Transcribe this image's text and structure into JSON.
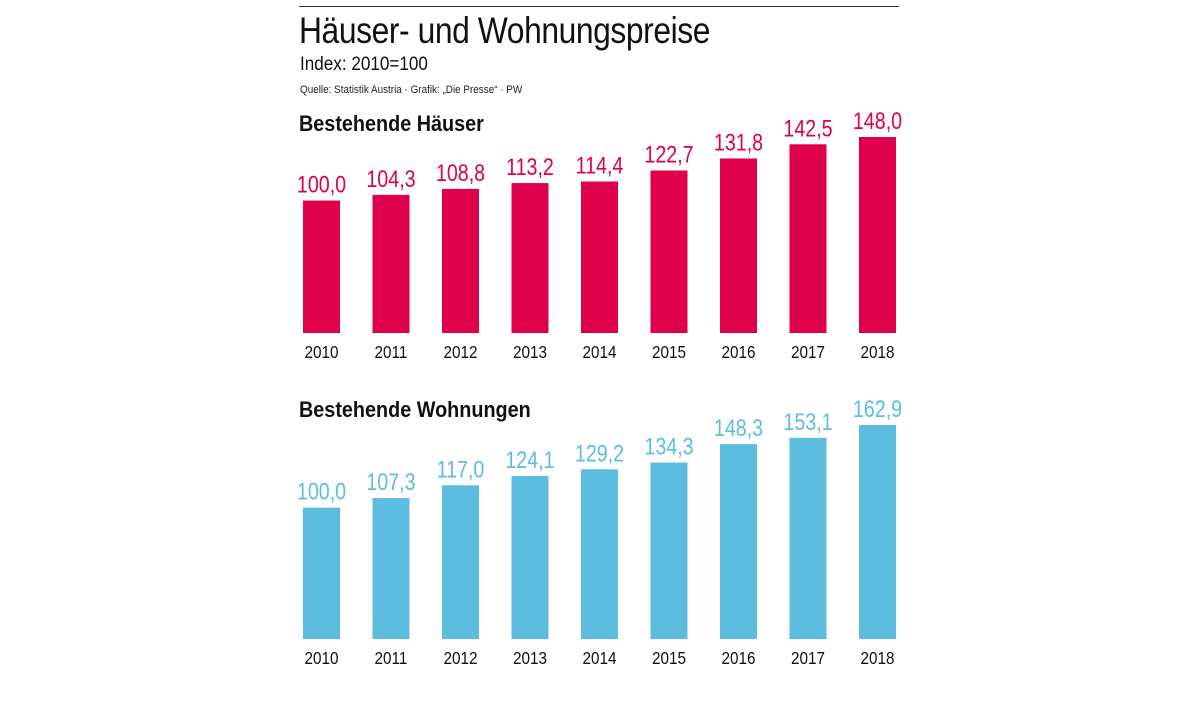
{
  "header": {
    "title": "Häuser- und Wohnungspreise",
    "subtitle": "Index: 2010=100",
    "source": "Quelle: Statistik Austria · Grafik: „Die Presse“ · PW"
  },
  "colors": {
    "houses": "#de004b",
    "flats": "#5dbde0"
  },
  "chart_data": [
    {
      "type": "bar",
      "title": "Bestehende Häuser",
      "categories": [
        "2010",
        "2011",
        "2012",
        "2013",
        "2014",
        "2015",
        "2016",
        "2017",
        "2018"
      ],
      "values": [
        100.0,
        104.3,
        108.8,
        113.2,
        114.4,
        122.7,
        131.8,
        142.5,
        148.0
      ],
      "value_labels": [
        "100,0",
        "104,3",
        "108,8",
        "113,2",
        "114,4",
        "122,7",
        "131,8",
        "142,5",
        "148,0"
      ],
      "ylim": [
        0,
        148.0
      ],
      "grid": false,
      "legend": "none"
    },
    {
      "type": "bar",
      "title": "Bestehende Wohnungen",
      "categories": [
        "2010",
        "2011",
        "2012",
        "2013",
        "2014",
        "2015",
        "2016",
        "2017",
        "2018"
      ],
      "values": [
        100.0,
        107.3,
        117.0,
        124.1,
        129.2,
        134.3,
        148.3,
        153.1,
        162.9
      ],
      "value_labels": [
        "100,0",
        "107,3",
        "117,0",
        "124,1",
        "129,2",
        "134,3",
        "148,3",
        "153,1",
        "162,9"
      ],
      "ylim": [
        0,
        162.9
      ],
      "grid": false,
      "legend": "none"
    }
  ]
}
